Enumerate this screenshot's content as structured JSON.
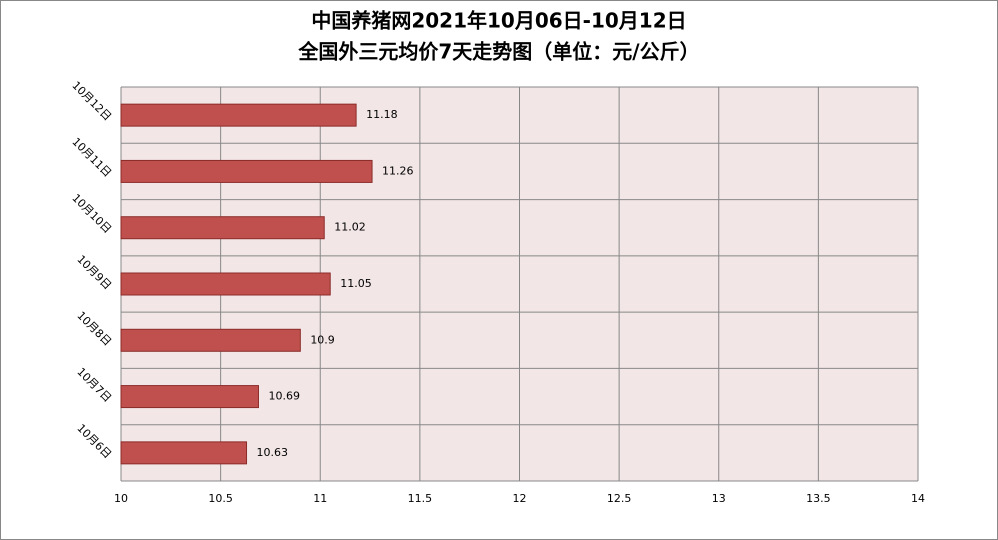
{
  "chart_data": {
    "type": "hbar",
    "title": "中国养猪网2021年10月06日-10月12日",
    "subtitle": "全国外三元均价7天走势图（单位：元/公斤）",
    "categories": [
      "10月12日",
      "10月11日",
      "10月10日",
      "10月9日",
      "10月8日",
      "10月7日",
      "10月6日"
    ],
    "values": [
      11.18,
      11.26,
      11.02,
      11.05,
      10.9,
      10.69,
      10.63
    ],
    "color": "#c0504d",
    "xlim": [
      10,
      14
    ],
    "xticks": [
      10,
      10.5,
      11,
      11.5,
      12,
      12.5,
      13,
      13.5,
      14
    ],
    "grid": true
  }
}
